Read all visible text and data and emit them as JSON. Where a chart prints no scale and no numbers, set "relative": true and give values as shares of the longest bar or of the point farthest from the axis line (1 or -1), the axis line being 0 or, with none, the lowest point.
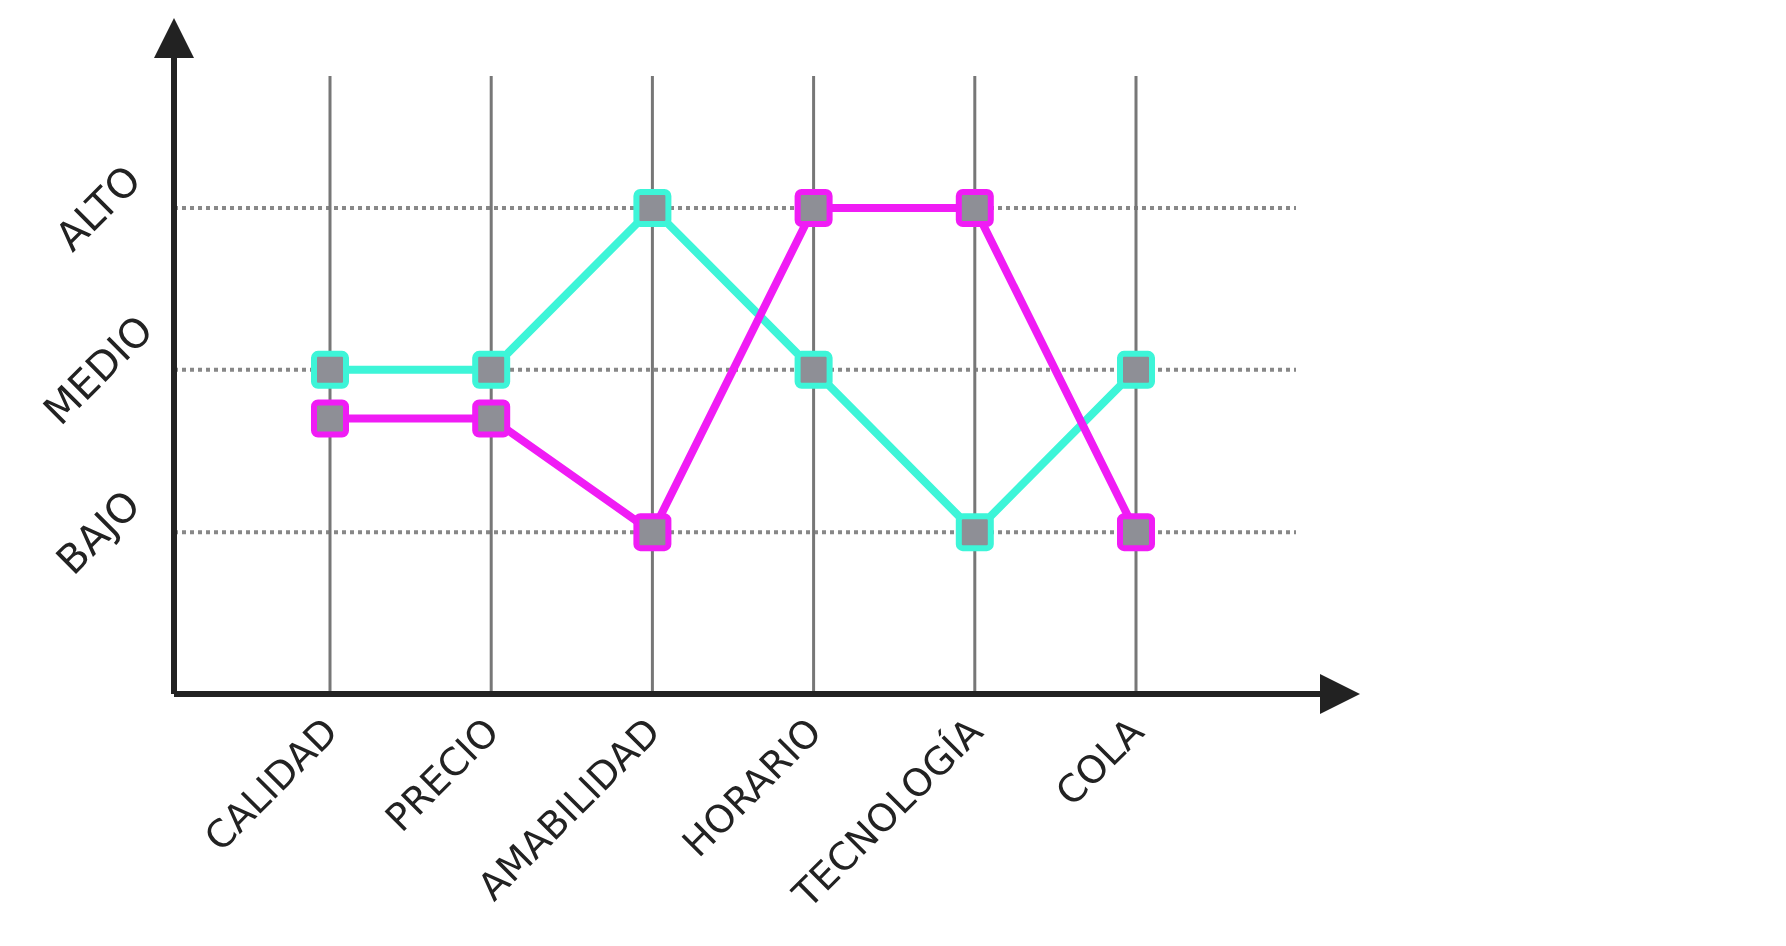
{
  "chart_data": {
    "type": "line",
    "categories": [
      "CALIDAD",
      "PRECIO",
      "AMABILIDAD",
      "HORARIO",
      "TECNOLOGÍA",
      "COLA"
    ],
    "series": [
      {
        "color": "#3df5d8",
        "values": [
          0.667,
          0.667,
          1,
          0.667,
          0.333,
          0.667
        ]
      },
      {
        "color": "#f01cf5",
        "values": [
          0.567,
          0.567,
          0.333,
          1,
          1,
          0.333
        ]
      }
    ],
    "relative": true,
    "ref_lines": [
      {
        "axis": "y",
        "value": 0.333,
        "label": "BAJO",
        "line_style": "dotted"
      },
      {
        "axis": "y",
        "value": 0.667,
        "label": "MEDIO",
        "line_style": "dotted"
      },
      {
        "axis": "y",
        "value": 1,
        "label": "ALTO",
        "line_style": "dotted"
      }
    ],
    "grid": "x",
    "marker": "square",
    "line_style": "solid"
  }
}
